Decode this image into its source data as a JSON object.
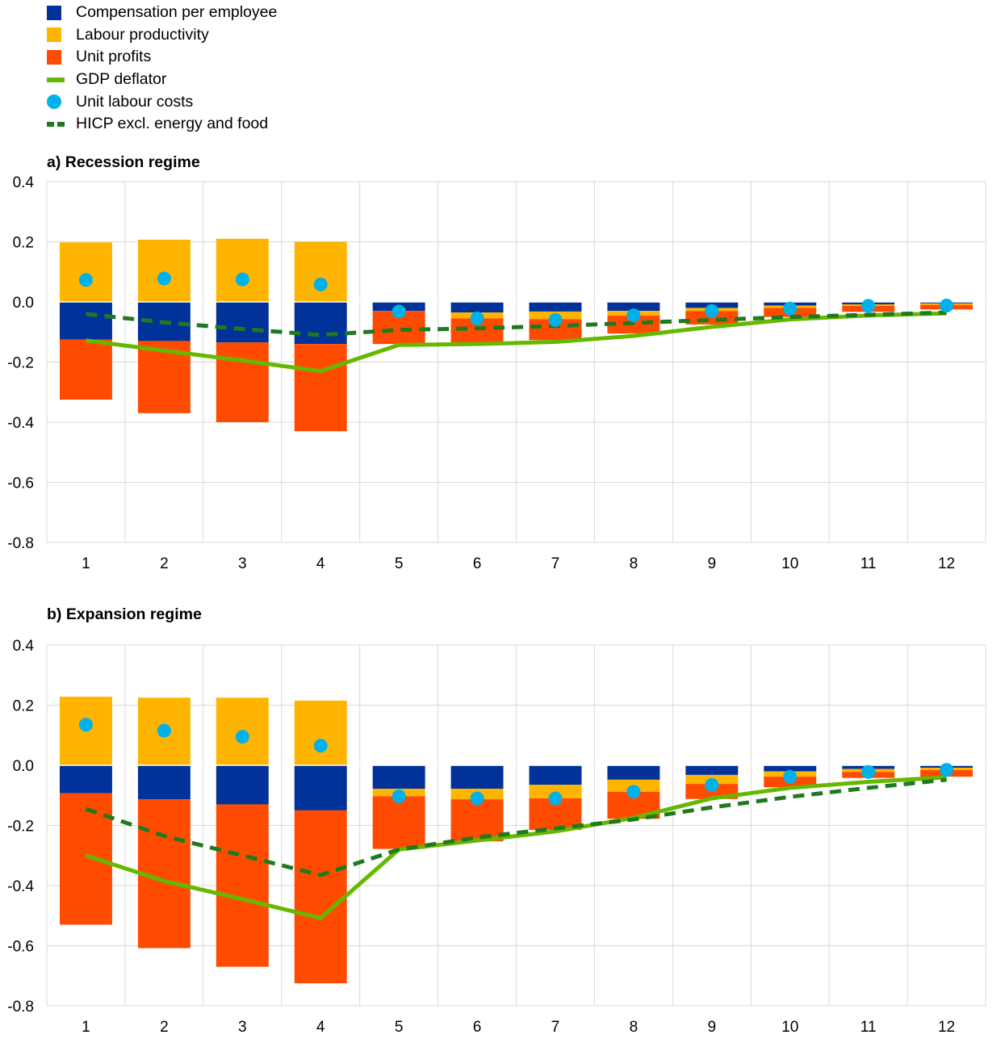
{
  "legend": {
    "items": [
      {
        "label": "Compensation per employee",
        "kind": "box",
        "color": "#003299"
      },
      {
        "label": "Labour productivity",
        "kind": "box",
        "color": "#FFB400"
      },
      {
        "label": "Unit profits",
        "kind": "box",
        "color": "#FF4B00"
      },
      {
        "label": "GDP deflator",
        "kind": "line",
        "color": "#65B800"
      },
      {
        "label": "Unit labour costs",
        "kind": "dot",
        "color": "#00B1EA"
      },
      {
        "label": "HICP excl. energy and food",
        "kind": "dash",
        "color": "#1f7a1f"
      }
    ]
  },
  "colors": {
    "compensation": "#003299",
    "productivity": "#FFB400",
    "profits": "#FF4B00",
    "gdp_deflator": "#65B800",
    "ulc": "#00B1EA",
    "hicp": "#1f7a1f",
    "grid": "#d9d9d9"
  },
  "chart_data": [
    {
      "type": "bar",
      "stacked": true,
      "title": "a) Recession regime",
      "categories": [
        "1",
        "2",
        "3",
        "4",
        "5",
        "6",
        "7",
        "8",
        "9",
        "10",
        "11",
        "12"
      ],
      "ylim": [
        -0.8,
        0.4
      ],
      "yticks": [
        0.4,
        0.2,
        0.0,
        -0.2,
        -0.4,
        -0.6,
        -0.8
      ],
      "ytick_labels": [
        "0.4",
        "0.2",
        "0.0",
        "-0.2",
        "-0.4",
        "-0.6",
        "-0.8"
      ],
      "grid": true,
      "series": [
        {
          "name": "Compensation per employee",
          "type": "bar",
          "values": [
            -0.125,
            -0.13,
            -0.135,
            -0.14,
            -0.03,
            -0.035,
            -0.032,
            -0.03,
            -0.02,
            -0.012,
            -0.008,
            -0.005
          ]
        },
        {
          "name": "Labour productivity",
          "type": "bar",
          "values": [
            0.198,
            0.207,
            0.21,
            0.2,
            0.0,
            -0.02,
            -0.025,
            -0.015,
            -0.01,
            -0.008,
            -0.005,
            -0.005
          ]
        },
        {
          "name": "Unit profits",
          "type": "bar",
          "values": [
            -0.2,
            -0.24,
            -0.265,
            -0.29,
            -0.11,
            -0.085,
            -0.07,
            -0.06,
            -0.045,
            -0.03,
            -0.02,
            -0.015
          ]
        },
        {
          "name": "GDP deflator",
          "type": "line",
          "values": [
            -0.128,
            -0.162,
            -0.195,
            -0.23,
            -0.143,
            -0.14,
            -0.133,
            -0.113,
            -0.083,
            -0.058,
            -0.045,
            -0.038
          ]
        },
        {
          "name": "Unit labour costs",
          "type": "scatter",
          "values": [
            0.073,
            0.078,
            0.075,
            0.058,
            -0.032,
            -0.055,
            -0.06,
            -0.045,
            -0.03,
            -0.022,
            -0.013,
            -0.012
          ]
        },
        {
          "name": "HICP excl. energy and food",
          "type": "line",
          "values": [
            -0.04,
            -0.068,
            -0.09,
            -0.11,
            -0.093,
            -0.088,
            -0.08,
            -0.07,
            -0.06,
            -0.05,
            -0.043,
            -0.035
          ]
        }
      ]
    },
    {
      "type": "bar",
      "stacked": true,
      "title": "b) Expansion regime",
      "categories": [
        "1",
        "2",
        "3",
        "4",
        "5",
        "6",
        "7",
        "8",
        "9",
        "10",
        "11",
        "12"
      ],
      "ylim": [
        -0.8,
        0.4
      ],
      "yticks": [
        0.4,
        0.2,
        0.0,
        -0.2,
        -0.4,
        -0.6,
        -0.8
      ],
      "ytick_labels": [
        "0.4",
        "0.2",
        "0.0",
        "-0.2",
        "-0.4",
        "-0.6",
        "-0.8"
      ],
      "grid": true,
      "series": [
        {
          "name": "Compensation per employee",
          "type": "bar",
          "values": [
            -0.093,
            -0.113,
            -0.13,
            -0.15,
            -0.078,
            -0.078,
            -0.065,
            -0.048,
            -0.032,
            -0.02,
            -0.012,
            -0.008
          ]
        },
        {
          "name": "Labour productivity",
          "type": "bar",
          "values": [
            0.228,
            0.225,
            0.225,
            0.215,
            -0.025,
            -0.035,
            -0.045,
            -0.04,
            -0.03,
            -0.018,
            -0.01,
            -0.008
          ]
        },
        {
          "name": "Unit profits",
          "type": "bar",
          "values": [
            -0.437,
            -0.495,
            -0.54,
            -0.575,
            -0.175,
            -0.14,
            -0.105,
            -0.09,
            -0.05,
            -0.035,
            -0.02,
            -0.022
          ]
        },
        {
          "name": "GDP deflator",
          "type": "line",
          "values": [
            -0.3,
            -0.385,
            -0.445,
            -0.508,
            -0.28,
            -0.25,
            -0.22,
            -0.175,
            -0.11,
            -0.075,
            -0.055,
            -0.04
          ]
        },
        {
          "name": "Unit labour costs",
          "type": "scatter",
          "values": [
            0.135,
            0.115,
            0.095,
            0.065,
            -0.103,
            -0.11,
            -0.11,
            -0.088,
            -0.065,
            -0.038,
            -0.022,
            -0.015
          ]
        },
        {
          "name": "HICP excl. energy and food",
          "type": "line",
          "values": [
            -0.145,
            -0.235,
            -0.3,
            -0.365,
            -0.28,
            -0.24,
            -0.21,
            -0.18,
            -0.14,
            -0.105,
            -0.075,
            -0.048
          ]
        }
      ]
    }
  ]
}
